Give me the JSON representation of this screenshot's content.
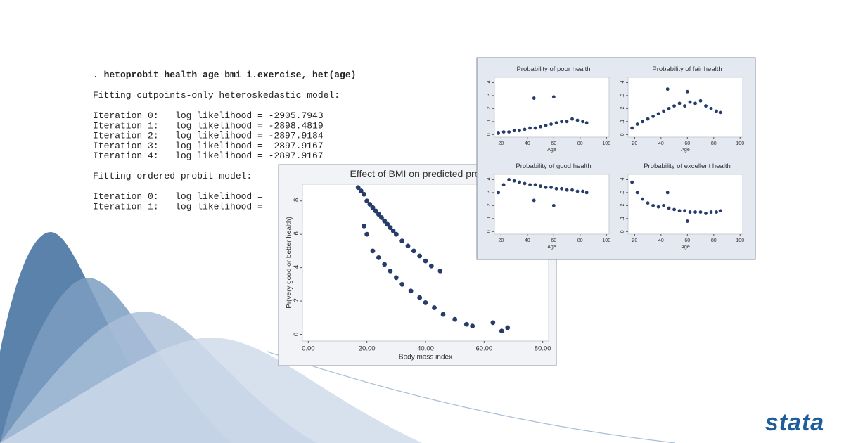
{
  "console": {
    "lines": [
      ". hetoprobit health age bmi i.exercise, het(age)",
      "Fitting cutpoints-only heteroskedastic model:",
      "Iteration 0:   log likelihood = -2905.7943",
      "Iteration 1:   log likelihood = -2898.4819",
      "Iteration 2:   log likelihood = -2897.9184",
      "Iteration 3:   log likelihood = -2897.9167",
      "Iteration 4:   log likelihood = -2897.9167",
      "Fitting ordered probit model:",
      "Iteration 0:   log likelihood =",
      "Iteration 1:   log likelihood ="
    ]
  },
  "logo": "stata",
  "chart_data": [
    {
      "type": "scatter",
      "title": "Effect of BMI on predicted pro",
      "xlabel": "Body mass index",
      "ylabel": "Pr(very good or better health)",
      "color": "#263d6b",
      "x": [
        17,
        18,
        19,
        20,
        21,
        22,
        23,
        24,
        25,
        26,
        27,
        28,
        29,
        30,
        32,
        34,
        36,
        38,
        40,
        42,
        45,
        19,
        20,
        22,
        24,
        26,
        28,
        30,
        32,
        35,
        38,
        40,
        43,
        46,
        50,
        54,
        56,
        63,
        66,
        68
      ],
      "values": [
        0.88,
        0.86,
        0.84,
        0.8,
        0.78,
        0.76,
        0.74,
        0.72,
        0.7,
        0.68,
        0.66,
        0.64,
        0.62,
        0.6,
        0.56,
        0.53,
        0.5,
        0.47,
        0.44,
        0.41,
        0.38,
        0.65,
        0.6,
        0.5,
        0.46,
        0.42,
        0.38,
        0.34,
        0.3,
        0.26,
        0.22,
        0.19,
        0.16,
        0.12,
        0.09,
        0.06,
        0.05,
        0.07,
        0.02,
        0.04
      ],
      "xlim": [
        -2,
        82
      ],
      "ylim": [
        -0.04,
        0.9
      ],
      "xticks": [
        {
          "value": 0,
          "label": "0.00"
        },
        {
          "value": 20,
          "label": "20.00"
        },
        {
          "value": 40,
          "label": "40.00"
        },
        {
          "value": 60,
          "label": "60.00"
        },
        {
          "value": 80,
          "label": "80.00"
        }
      ],
      "yticks": [
        0,
        {
          "value": 0.2,
          "label": ".2"
        },
        {
          "value": 0.4,
          "label": ".4"
        },
        {
          "value": 0.6,
          "label": ".6"
        },
        {
          "value": 0.8,
          "label": ".8"
        }
      ]
    },
    {
      "type": "scatter",
      "title": "Probability of poor health",
      "xlabel": "Age",
      "color": "#263d6b",
      "x": [
        18,
        22,
        26,
        30,
        34,
        38,
        42,
        46,
        50,
        54,
        58,
        62,
        66,
        70,
        74,
        78,
        82,
        85,
        45,
        60
      ],
      "values": [
        0.01,
        0.02,
        0.02,
        0.03,
        0.03,
        0.04,
        0.05,
        0.05,
        0.06,
        0.07,
        0.08,
        0.09,
        0.1,
        0.1,
        0.12,
        0.11,
        0.1,
        0.09,
        0.28,
        0.29
      ],
      "xlim": [
        15,
        102
      ],
      "ylim": [
        -0.02,
        0.44
      ],
      "xticks": [
        20,
        40,
        60,
        80,
        100
      ],
      "yticks": [
        0,
        {
          "value": 0.1,
          "label": ".1"
        },
        {
          "value": 0.2,
          "label": ".2"
        },
        {
          "value": 0.3,
          "label": ".3"
        },
        {
          "value": 0.4,
          "label": ".4"
        }
      ]
    },
    {
      "type": "scatter",
      "title": "Probability of fair health",
      "xlabel": "Age",
      "color": "#263d6b",
      "x": [
        18,
        22,
        26,
        30,
        34,
        38,
        42,
        46,
        50,
        54,
        58,
        62,
        66,
        70,
        74,
        78,
        82,
        85,
        45,
        60
      ],
      "values": [
        0.05,
        0.08,
        0.1,
        0.12,
        0.14,
        0.16,
        0.18,
        0.2,
        0.22,
        0.24,
        0.22,
        0.25,
        0.24,
        0.26,
        0.22,
        0.2,
        0.18,
        0.17,
        0.35,
        0.33
      ],
      "xlim": [
        15,
        102
      ],
      "ylim": [
        -0.02,
        0.44
      ],
      "xticks": [
        20,
        40,
        60,
        80,
        100
      ],
      "yticks": [
        0,
        {
          "value": 0.1,
          "label": ".1"
        },
        {
          "value": 0.2,
          "label": ".2"
        },
        {
          "value": 0.3,
          "label": ".3"
        },
        {
          "value": 0.4,
          "label": ".4"
        }
      ]
    },
    {
      "type": "scatter",
      "title": "Probability of good health",
      "xlabel": "Age",
      "color": "#263d6b",
      "x": [
        18,
        22,
        26,
        30,
        34,
        38,
        42,
        46,
        50,
        54,
        58,
        62,
        66,
        70,
        74,
        78,
        82,
        85,
        45,
        60
      ],
      "values": [
        0.3,
        0.36,
        0.4,
        0.39,
        0.38,
        0.37,
        0.36,
        0.36,
        0.35,
        0.34,
        0.34,
        0.33,
        0.33,
        0.32,
        0.32,
        0.31,
        0.31,
        0.3,
        0.24,
        0.2
      ],
      "xlim": [
        15,
        102
      ],
      "ylim": [
        -0.02,
        0.44
      ],
      "xticks": [
        20,
        40,
        60,
        80,
        100
      ],
      "yticks": [
        0,
        {
          "value": 0.1,
          "label": ".1"
        },
        {
          "value": 0.2,
          "label": ".2"
        },
        {
          "value": 0.3,
          "label": ".3"
        },
        {
          "value": 0.4,
          "label": ".4"
        }
      ]
    },
    {
      "type": "scatter",
      "title": "Probability of excellent health",
      "xlabel": "Age",
      "color": "#263d6b",
      "x": [
        18,
        22,
        26,
        30,
        34,
        38,
        42,
        46,
        50,
        54,
        58,
        62,
        66,
        70,
        74,
        78,
        82,
        85,
        45,
        60
      ],
      "values": [
        0.38,
        0.3,
        0.25,
        0.22,
        0.2,
        0.19,
        0.2,
        0.18,
        0.17,
        0.16,
        0.16,
        0.15,
        0.15,
        0.15,
        0.14,
        0.15,
        0.15,
        0.16,
        0.3,
        0.08
      ],
      "xlim": [
        15,
        102
      ],
      "ylim": [
        -0.02,
        0.44
      ],
      "xticks": [
        20,
        40,
        60,
        80,
        100
      ],
      "yticks": [
        0,
        {
          "value": 0.1,
          "label": ".1"
        },
        {
          "value": 0.2,
          "label": ".2"
        },
        {
          "value": 0.3,
          "label": ".3"
        },
        {
          "value": 0.4,
          "label": ".4"
        }
      ]
    }
  ]
}
